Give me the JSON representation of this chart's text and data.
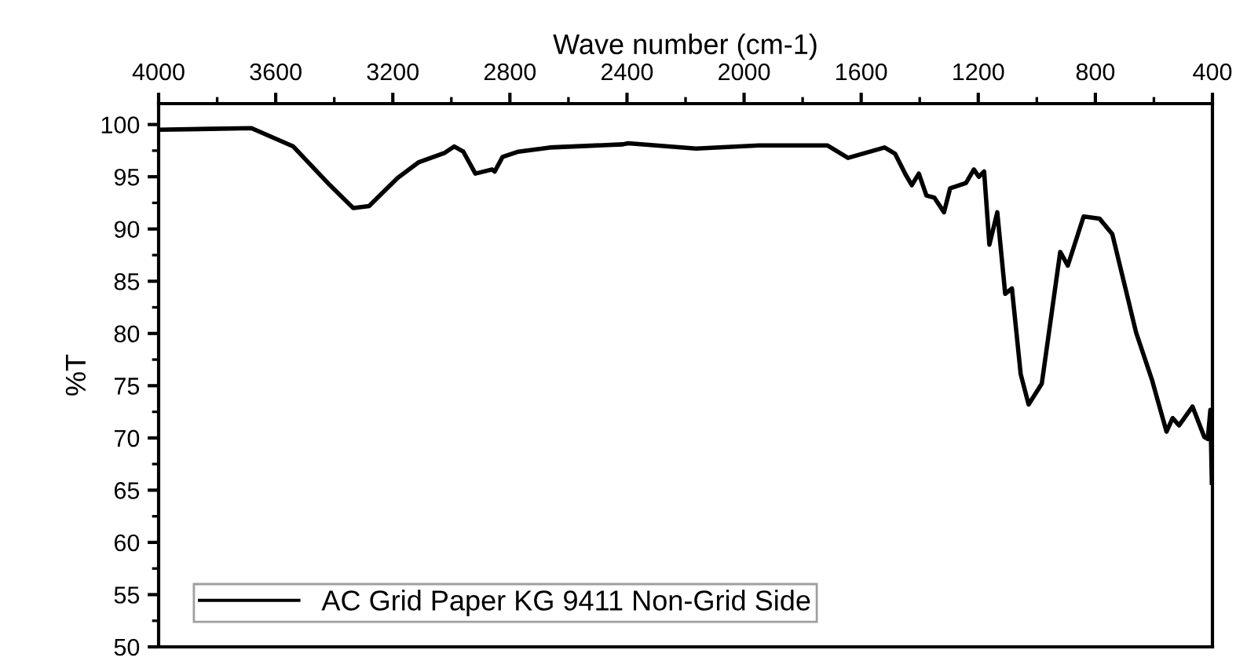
{
  "chart_data": {
    "type": "line",
    "xlabel": "Wave number (cm-1)",
    "ylabel": "%T",
    "xlim": [
      4000,
      400
    ],
    "xticks": [
      4000,
      3600,
      3200,
      2800,
      2400,
      2000,
      1600,
      1200,
      800,
      400
    ],
    "ylim": [
      50,
      102
    ],
    "yticks": [
      50,
      55,
      60,
      65,
      70,
      75,
      80,
      85,
      90,
      95,
      100
    ],
    "grid": false,
    "legend": "bottom left",
    "series": [
      {
        "name": "AC Grid Paper KG 9411 Non-Grid Side",
        "color": "#000000",
        "x": [
          4000,
          3683,
          3540,
          3415,
          3335,
          3281,
          3183,
          3111,
          3022,
          2990,
          2959,
          2918,
          2861,
          2852,
          2825,
          2771,
          2664,
          2414,
          2396,
          2164,
          1949,
          1716,
          1645,
          1520,
          1484,
          1448,
          1427,
          1403,
          1377,
          1350,
          1317,
          1296,
          1242,
          1215,
          1198,
          1180,
          1162,
          1135,
          1108,
          1085,
          1055,
          1028,
          983,
          920,
          894,
          840,
          786,
          742,
          697,
          661,
          607,
          557,
          536,
          514,
          468,
          428,
          416,
          407,
          402
        ],
        "values": [
          99.5,
          99.65,
          97.9,
          94.2,
          92.0,
          92.2,
          94.9,
          96.4,
          97.3,
          97.9,
          97.4,
          95.3,
          95.7,
          95.5,
          96.9,
          97.4,
          97.8,
          98.1,
          98.2,
          97.7,
          98.0,
          98.0,
          96.8,
          97.8,
          97.2,
          95.2,
          94.2,
          95.3,
          93.2,
          93.0,
          91.6,
          93.9,
          94.4,
          95.7,
          95.0,
          95.5,
          88.5,
          91.6,
          83.8,
          84.3,
          76.1,
          73.2,
          75.2,
          87.8,
          86.5,
          91.2,
          91.0,
          89.5,
          84.3,
          80.1,
          75.6,
          70.6,
          71.9,
          71.2,
          73.0,
          70.1,
          69.9,
          72.7,
          65.7
        ]
      }
    ]
  }
}
